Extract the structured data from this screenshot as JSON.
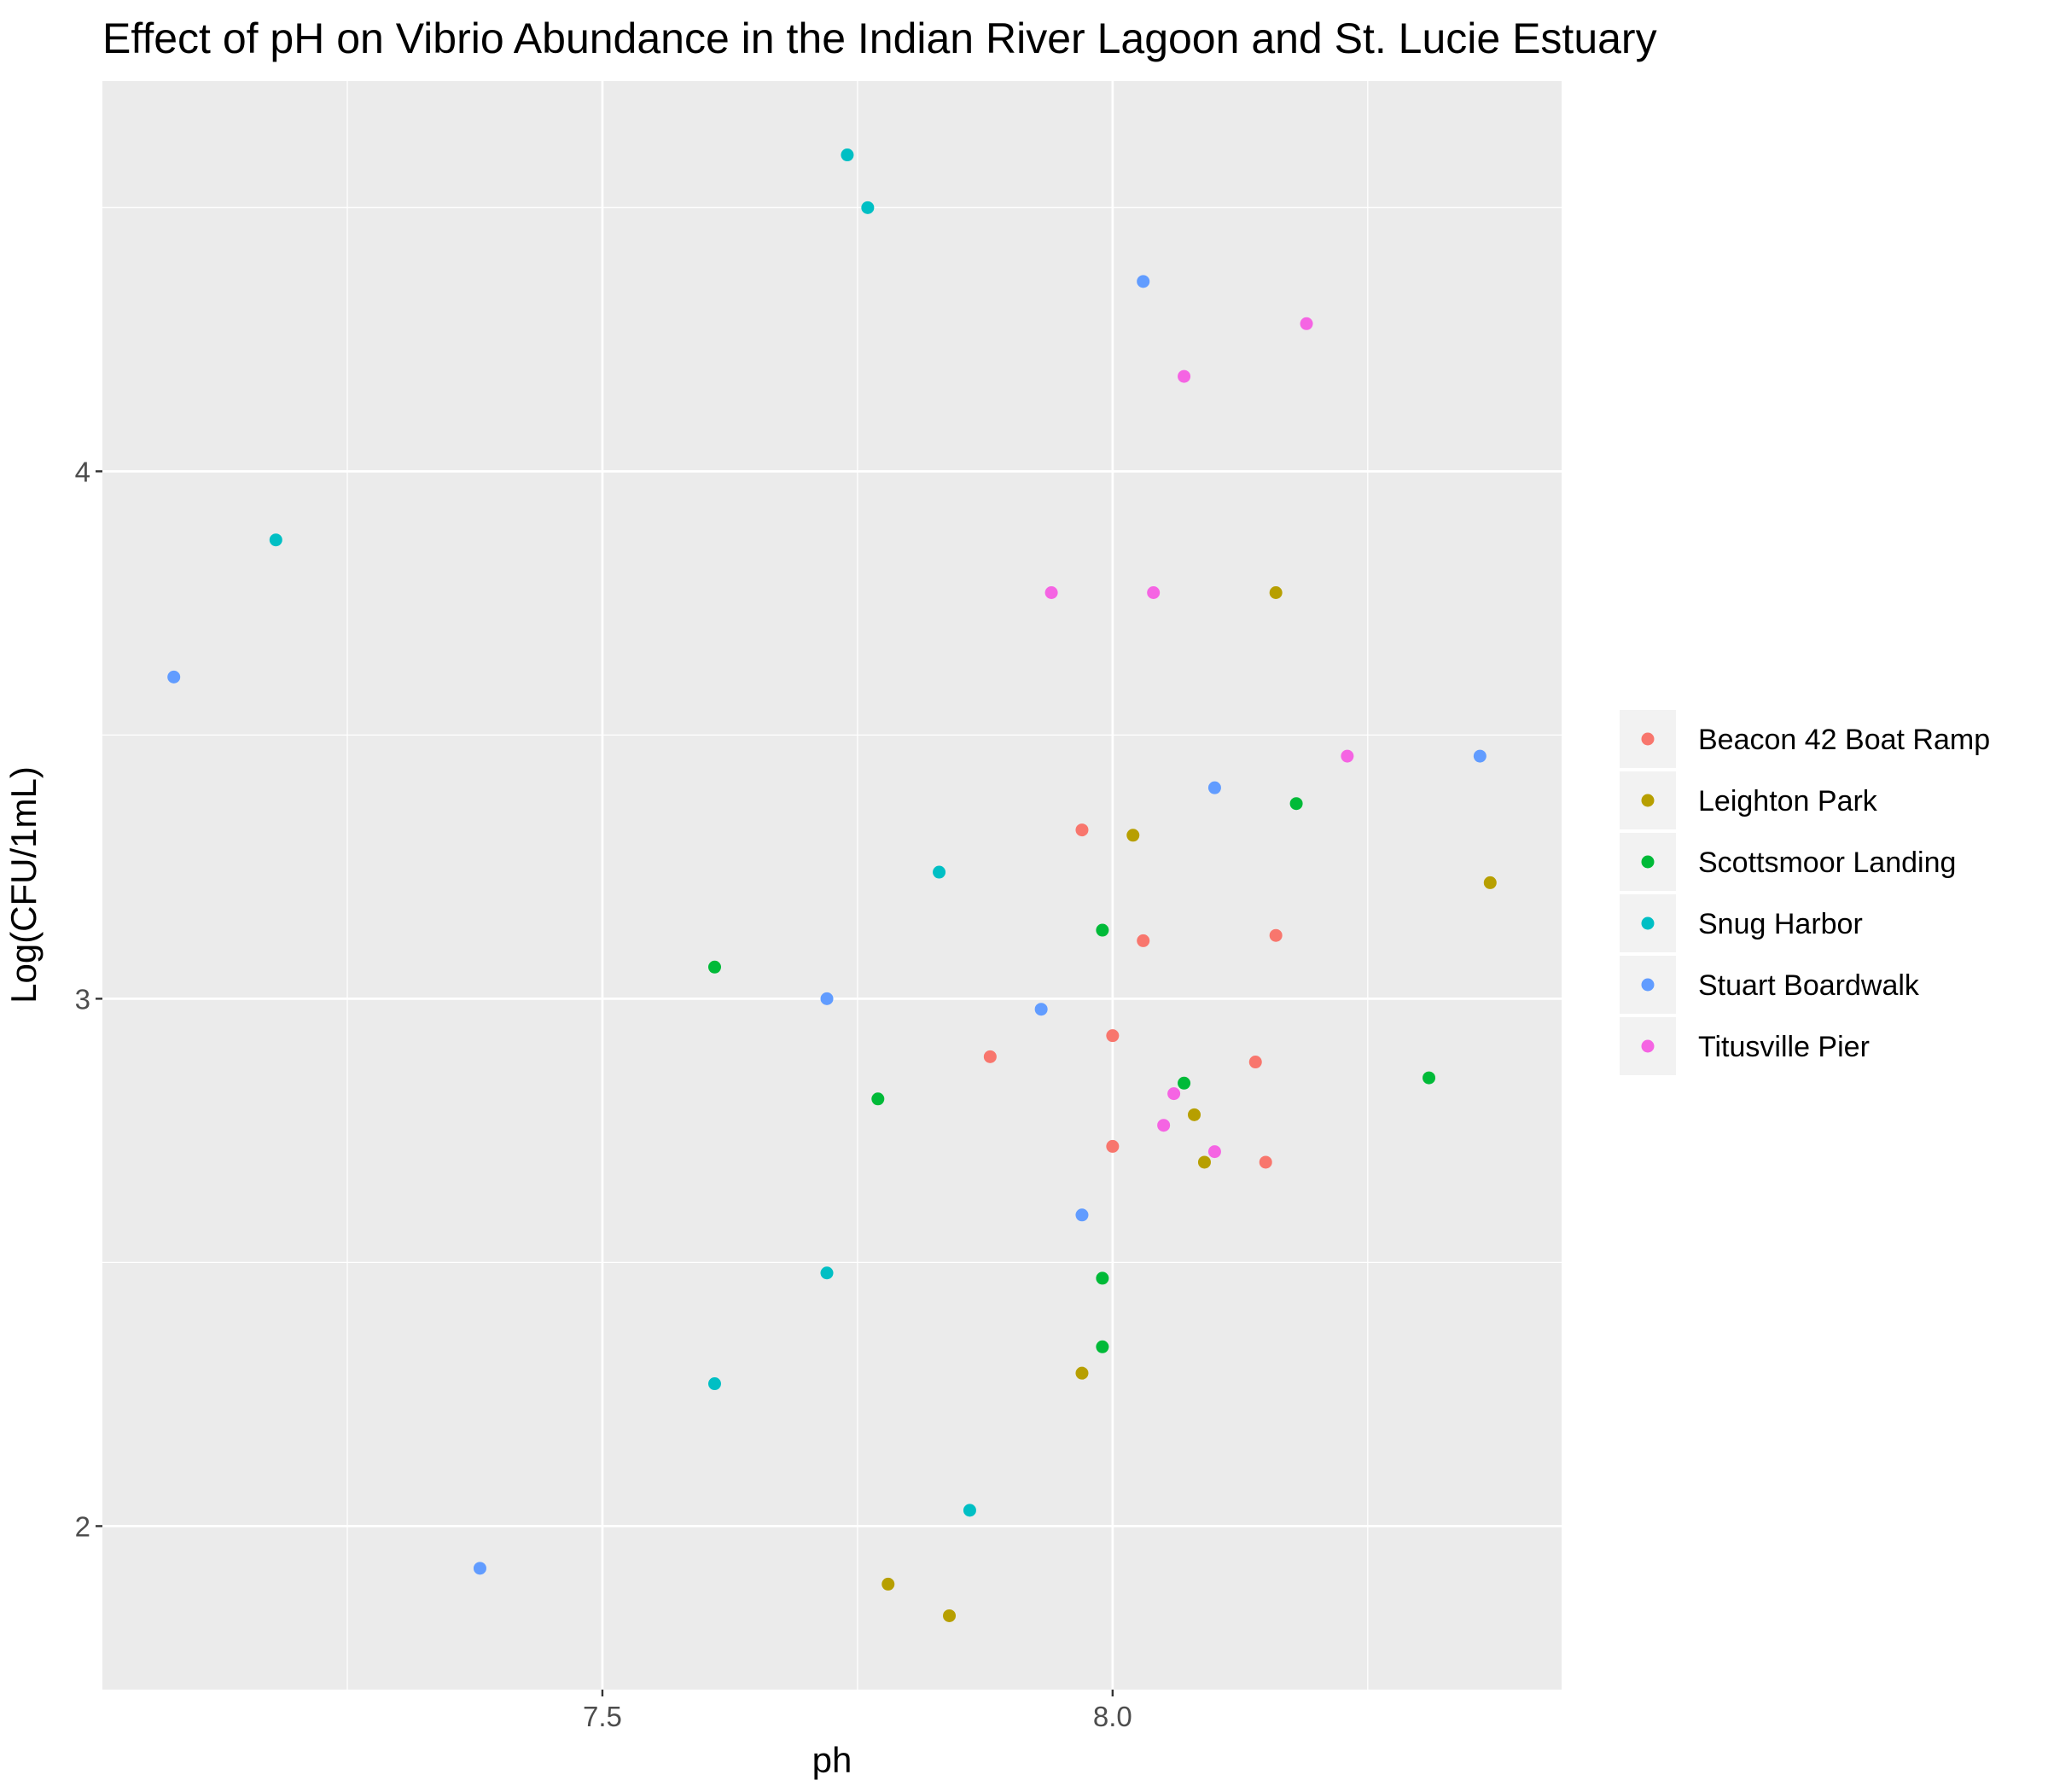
{
  "chart_data": {
    "type": "scatter",
    "title": "Effect of pH on Vibrio Abundance in the Indian River Lagoon and St. Lucie Estuary",
    "xlabel": "ph",
    "ylabel": "Log(CFU/1mL)",
    "xlim": [
      7.01,
      8.44
    ],
    "ylim": [
      1.69,
      4.74
    ],
    "x_ticks": [
      7.5,
      8.0
    ],
    "x_tick_labels": [
      "7.5",
      "8.0"
    ],
    "y_ticks": [
      2,
      3,
      4
    ],
    "y_tick_labels": [
      "2",
      "3",
      "4"
    ],
    "grid": true,
    "legend_position": "right",
    "series": [
      {
        "name": "Beacon 42 Boat Ramp",
        "color": "#F8766D",
        "points": [
          [
            7.97,
            3.32
          ],
          [
            8.03,
            3.11
          ],
          [
            8.16,
            3.12
          ],
          [
            8.0,
            2.93
          ],
          [
            7.88,
            2.89
          ],
          [
            8.14,
            2.88
          ],
          [
            8.0,
            2.72
          ],
          [
            8.15,
            2.69
          ]
        ]
      },
      {
        "name": "Leighton Park",
        "color": "#B79F00",
        "points": [
          [
            8.16,
            3.77
          ],
          [
            8.02,
            3.31
          ],
          [
            8.37,
            3.22
          ],
          [
            8.08,
            2.78
          ],
          [
            8.09,
            2.69
          ],
          [
            7.97,
            2.29
          ],
          [
            7.78,
            1.89
          ],
          [
            7.84,
            1.83
          ]
        ]
      },
      {
        "name": "Scottsmoor Landing",
        "color": "#00BA38",
        "points": [
          [
            8.18,
            3.37
          ],
          [
            7.99,
            3.13
          ],
          [
            7.61,
            3.06
          ],
          [
            8.07,
            2.84
          ],
          [
            8.31,
            2.85
          ],
          [
            7.77,
            2.81
          ],
          [
            7.99,
            2.47
          ],
          [
            7.99,
            2.34
          ]
        ]
      },
      {
        "name": "Snug Harbor",
        "color": "#00BFC4",
        "points": [
          [
            7.74,
            4.6
          ],
          [
            7.76,
            4.5
          ],
          [
            7.18,
            3.87
          ],
          [
            7.83,
            3.24
          ],
          [
            7.72,
            2.48
          ],
          [
            7.61,
            2.27
          ],
          [
            7.86,
            2.03
          ]
        ]
      },
      {
        "name": "Stuart Boardwalk",
        "color": "#619CFF",
        "points": [
          [
            8.03,
            4.36
          ],
          [
            7.08,
            3.61
          ],
          [
            8.36,
            3.46
          ],
          [
            8.1,
            3.4
          ],
          [
            7.72,
            3.0
          ],
          [
            7.93,
            2.98
          ],
          [
            7.97,
            2.59
          ],
          [
            7.38,
            1.92
          ]
        ]
      },
      {
        "name": "Titusville Pier",
        "color": "#F564E3",
        "points": [
          [
            8.19,
            4.28
          ],
          [
            8.07,
            4.18
          ],
          [
            7.94,
            3.77
          ],
          [
            8.04,
            3.77
          ],
          [
            8.23,
            3.46
          ],
          [
            8.06,
            2.82
          ],
          [
            8.05,
            2.76
          ],
          [
            8.1,
            2.71
          ]
        ]
      }
    ]
  }
}
